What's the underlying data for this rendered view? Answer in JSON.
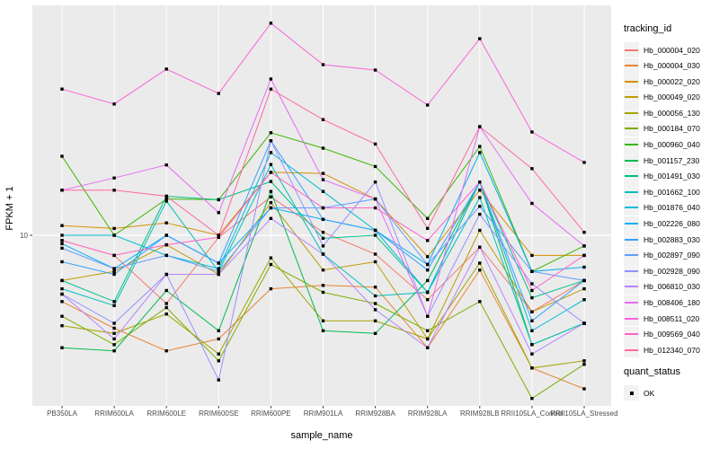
{
  "chart_data": {
    "type": "line",
    "title": "",
    "xlabel": "sample_name",
    "ylabel": "FPKM + 1",
    "y_scale": "log10",
    "ylim": [
      1.85,
      96.5
    ],
    "y_ticks": [
      {
        "value": 10,
        "label": "10"
      }
    ],
    "grid": "white major gridlines on gray panel",
    "panel_background": "#EBEBEB",
    "legend_position": "right",
    "legend_title": "tracking_id",
    "point_shape": "filled-black-square",
    "quant_legend": {
      "title": "quant_status",
      "items": [
        "OK"
      ]
    },
    "categories": [
      "PB350LA",
      "RRIM600LA",
      "RRIM600LE",
      "RRIM600SE",
      "RRIM600PE",
      "RRIM901LA",
      "RRIM928BA",
      "RRIM928LA",
      "RRIM928LB",
      "RRII105LA_Control",
      "RRII105LA_Stressed"
    ],
    "series": [
      {
        "name": "Hb_000004_020",
        "color": "#F8766D",
        "values": [
          9.5,
          8.2,
          5.1,
          9.8,
          14.6,
          10.3,
          8.3,
          5.3,
          8.9,
          4.7,
          6.4
        ]
      },
      {
        "name": "Hb_000004_030",
        "color": "#EA8331",
        "values": [
          5.2,
          4.0,
          3.2,
          3.6,
          5.9,
          6.1,
          6.0,
          3.3,
          7.1,
          2.7,
          2.2
        ]
      },
      {
        "name": "Hb_000022_020",
        "color": "#D89000",
        "values": [
          11.0,
          10.7,
          11.3,
          10.0,
          18.6,
          18.4,
          14.3,
          8.1,
          15.6,
          8.2,
          8.2
        ]
      },
      {
        "name": "Hb_000049_020",
        "color": "#C09B00",
        "values": [
          6.4,
          7.0,
          9.1,
          6.8,
          13.8,
          7.1,
          7.7,
          3.6,
          10.5,
          4.7,
          5.9
        ]
      },
      {
        "name": "Hb_000056_130",
        "color": "#A3A500",
        "values": [
          4.1,
          3.8,
          4.6,
          3.1,
          8.0,
          4.3,
          4.3,
          3.6,
          7.6,
          2.7,
          2.9
        ]
      },
      {
        "name": "Hb_000184_070",
        "color": "#7CAE00",
        "values": [
          4.5,
          3.4,
          4.9,
          2.9,
          7.5,
          5.7,
          5.1,
          3.9,
          5.2,
          2.0,
          2.8
        ]
      },
      {
        "name": "Hb_000960_040",
        "color": "#39B600",
        "values": [
          21.8,
          10.0,
          14.3,
          14.2,
          27.5,
          23.6,
          19.7,
          11.8,
          24.0,
          7.0,
          9.0
        ]
      },
      {
        "name": "Hb_001157_230",
        "color": "#00BB4E",
        "values": [
          3.3,
          3.2,
          5.8,
          3.9,
          15.4,
          3.9,
          3.8,
          6.4,
          16.9,
          3.4,
          4.2
        ]
      },
      {
        "name": "Hb_001491_030",
        "color": "#00C087",
        "values": [
          6.4,
          5.2,
          14.7,
          14.2,
          17.0,
          9.7,
          10.0,
          5.7,
          16.9,
          5.4,
          6.4
        ]
      },
      {
        "name": "Hb_001662_100",
        "color": "#00C0B8",
        "values": [
          5.9,
          5.0,
          14.0,
          7.0,
          20.1,
          8.3,
          5.5,
          5.7,
          14.5,
          3.4,
          4.2
        ]
      },
      {
        "name": "Hb_001876_040",
        "color": "#00BCD8",
        "values": [
          10.0,
          10.0,
          8.2,
          7.2,
          22.6,
          15.4,
          10.5,
          5.7,
          16.9,
          3.9,
          5.3
        ]
      },
      {
        "name": "Hb_002226_080",
        "color": "#00B0F6",
        "values": [
          9.2,
          7.2,
          10.0,
          7.6,
          13.1,
          11.7,
          10.5,
          7.5,
          22.6,
          7.0,
          7.3
        ]
      },
      {
        "name": "Hb_002883_030",
        "color": "#35A2FF",
        "values": [
          7.7,
          6.8,
          10.0,
          7.6,
          25.4,
          11.7,
          10.5,
          7.1,
          16.9,
          4.3,
          6.4
        ]
      },
      {
        "name": "Hb_002897_090",
        "color": "#619CFF",
        "values": [
          8.8,
          7.2,
          8.2,
          7.0,
          13.1,
          13.1,
          14.3,
          7.5,
          13.3,
          7.0,
          6.4
        ]
      },
      {
        "name": "Hb_002928_090",
        "color": "#9590FF",
        "values": [
          5.6,
          4.2,
          6.8,
          2.4,
          25.4,
          9.0,
          16.9,
          4.5,
          12.3,
          6.2,
          4.2
        ]
      },
      {
        "name": "Hb_006810_030",
        "color": "#B983FF",
        "values": [
          5.6,
          3.6,
          6.8,
          6.8,
          11.8,
          8.3,
          4.8,
          3.3,
          8.9,
          3.1,
          4.2
        ]
      },
      {
        "name": "Hb_008406_180",
        "color": "#E76BF3",
        "values": [
          15.6,
          17.6,
          20.0,
          12.5,
          46.7,
          17.3,
          14.3,
          4.5,
          29.2,
          13.7,
          9.0
        ]
      },
      {
        "name": "Hb_008511_020",
        "color": "#FA62DB",
        "values": [
          42.3,
          36.5,
          51.5,
          40.5,
          81.0,
          53.8,
          51.0,
          36.1,
          69.5,
          27.7,
          20.5
        ]
      },
      {
        "name": "Hb_009569_040",
        "color": "#FF61C9",
        "values": [
          9.5,
          8.2,
          9.1,
          9.8,
          18.6,
          13.1,
          13.1,
          9.5,
          16.9,
          5.8,
          8.2
        ]
      },
      {
        "name": "Hb_012340_070",
        "color": "#FF689E",
        "values": [
          15.6,
          15.6,
          14.7,
          10.0,
          42.3,
          31.3,
          24.6,
          10.7,
          29.2,
          19.3,
          10.3
        ]
      }
    ]
  }
}
